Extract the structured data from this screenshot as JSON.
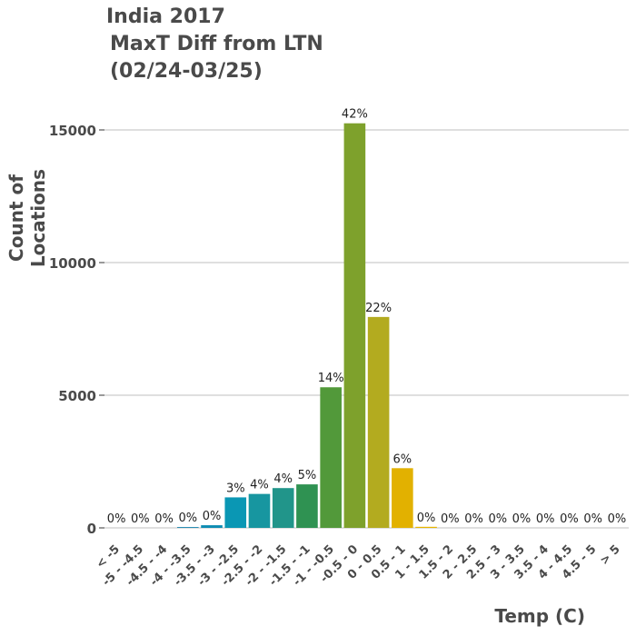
{
  "title_lines": [
    "India 2017",
    "MaxT Diff from LTN",
    "(02/24-03/25)"
  ],
  "chart_data": {
    "type": "bar",
    "title": "India 2017 MaxT Diff from LTN (02/24-03/25)",
    "xlabel": "Temp (C)",
    "ylabel": "Count of Locations",
    "ylim": [
      0,
      15000
    ],
    "yticks": [
      0,
      5000,
      10000,
      15000
    ],
    "grid": true,
    "categories": [
      "< -5",
      "-5 - -4.5",
      "-4.5 - -4",
      "-4 - -3.5",
      "-3.5 - -3",
      "-3 - -2.5",
      "-2.5 - -2",
      "-2 - -1.5",
      "-1.5 - -1",
      "-1 - -0.5",
      "-0.5 - 0",
      "0 - 0.5",
      "0.5 - 1",
      "1 - 1.5",
      "1.5 - 2",
      "2 - 2.5",
      "2.5 - 3",
      "3 - 3.5",
      "3.5 - 4",
      "4 - 4.5",
      "4.5 - 5",
      "> 5"
    ],
    "values": [
      0,
      0,
      0,
      30,
      100,
      1150,
      1280,
      1500,
      1640,
      5300,
      15250,
      7950,
      2250,
      40,
      0,
      0,
      0,
      0,
      0,
      0,
      0,
      0
    ],
    "labels": [
      "0%",
      "0%",
      "0%",
      "0%",
      "0%",
      "3%",
      "4%",
      "4%",
      "5%",
      "14%",
      "42%",
      "22%",
      "6%",
      "0%",
      "0%",
      "0%",
      "0%",
      "0%",
      "0%",
      "0%",
      "0%",
      "0%"
    ],
    "colors": [
      "#1a5f9c",
      "#1a6aa1",
      "#1676a7",
      "#1181ac",
      "#0d8cb2",
      "#0a97b4",
      "#1796a0",
      "#21958a",
      "#2f9252",
      "#52993a",
      "#7ea12c",
      "#b3ab1f",
      "#e2b100",
      "#e8b500",
      "#e8b500",
      "#e8b500",
      "#e8b500",
      "#e8b500",
      "#e8b500",
      "#e8b500",
      "#e8b500",
      "#e8b500"
    ]
  }
}
